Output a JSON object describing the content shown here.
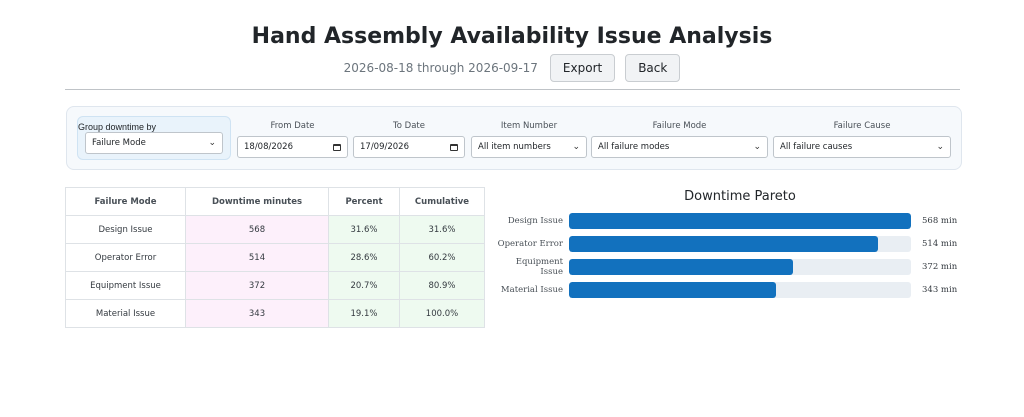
{
  "header": {
    "title": "Hand Assembly Availability Issue Analysis",
    "date_range": "2026-08-18 through 2026-09-17",
    "export_label": "Export",
    "back_label": "Back"
  },
  "filters": {
    "group_by": {
      "label": "Group downtime by",
      "value": "Failure Mode"
    },
    "from_date": {
      "label": "From Date",
      "value": "18/08/2026"
    },
    "to_date": {
      "label": "To Date",
      "value": "17/09/2026"
    },
    "item_number": {
      "label": "Item Number",
      "value": "All item numbers"
    },
    "failure_mode": {
      "label": "Failure Mode",
      "value": "All failure modes"
    },
    "failure_cause": {
      "label": "Failure Cause",
      "value": "All failure causes"
    }
  },
  "table": {
    "columns": [
      "Failure Mode",
      "Downtime minutes",
      "Percent",
      "Cumulative"
    ],
    "rows": [
      {
        "mode": "Design Issue",
        "minutes": "568",
        "percent": "31.6%",
        "cumulative": "31.6%"
      },
      {
        "mode": "Operator Error",
        "minutes": "514",
        "percent": "28.6%",
        "cumulative": "60.2%"
      },
      {
        "mode": "Equipment Issue",
        "minutes": "372",
        "percent": "20.7%",
        "cumulative": "80.9%"
      },
      {
        "mode": "Material Issue",
        "minutes": "343",
        "percent": "19.1%",
        "cumulative": "100.0%"
      }
    ]
  },
  "chart_data": {
    "type": "bar",
    "title": "Downtime Pareto",
    "orientation": "horizontal",
    "categories": [
      "Design Issue",
      "Operator Error",
      "Equipment Issue",
      "Material Issue"
    ],
    "values": [
      568,
      514,
      372,
      343
    ],
    "value_labels": [
      "568 min",
      "514 min",
      "372 min",
      "343 min"
    ],
    "xlim": [
      0,
      568
    ],
    "bar_color": "#1271be"
  }
}
